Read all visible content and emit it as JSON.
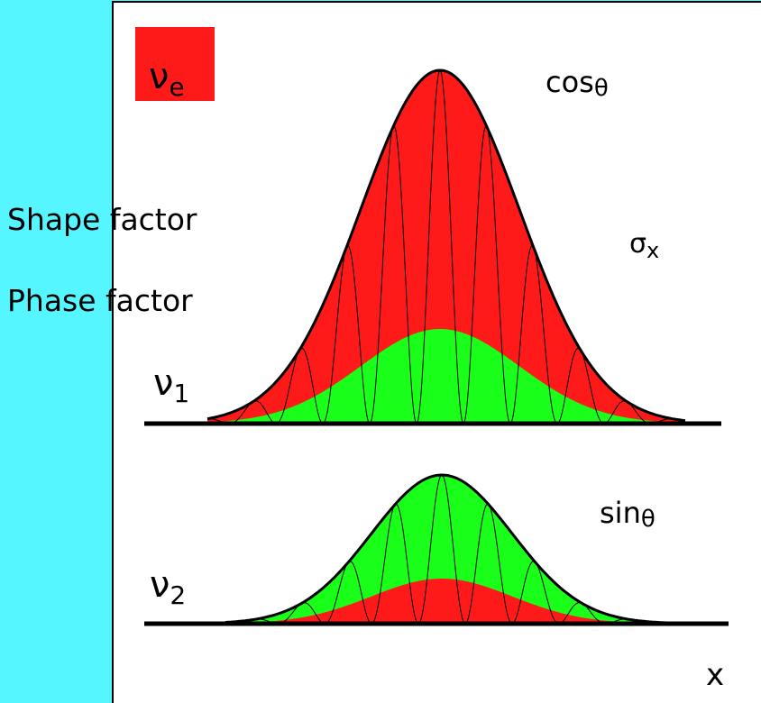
{
  "labels": {
    "nu_e": {
      "symbol": "ν",
      "subscript": "e"
    },
    "cos_theta": {
      "text": "cos",
      "symbol": "θ"
    },
    "shape_factor": "Shape factor",
    "phase_factor": "Phase factor",
    "sigma_x": {
      "symbol": "σ",
      "subscript": "x"
    },
    "nu_1": {
      "symbol": "ν",
      "subscript": "1"
    },
    "sin_theta": {
      "text": "sin",
      "symbol": "θ"
    },
    "nu_2": {
      "symbol": "ν",
      "subscript": "2"
    },
    "x_axis": "x"
  }
}
